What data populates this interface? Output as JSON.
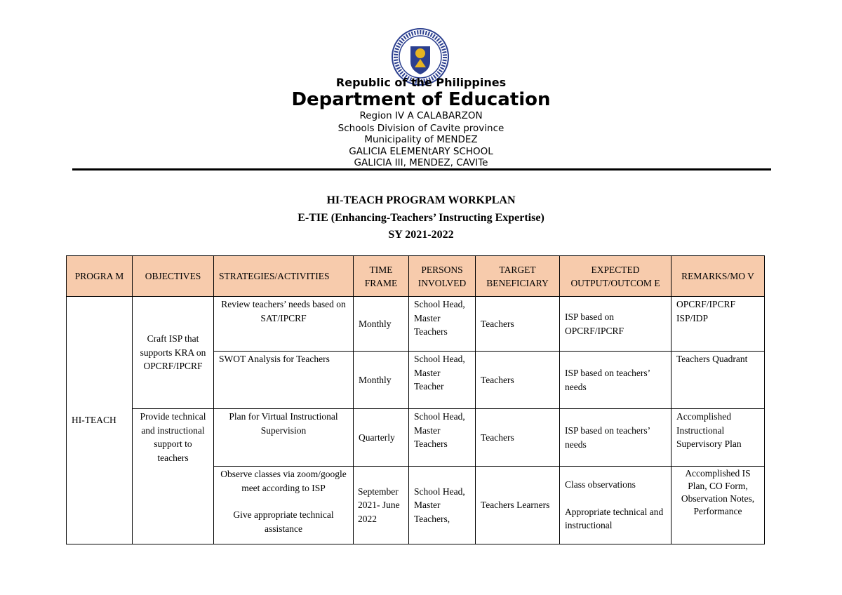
{
  "header": {
    "seal_text": "KAGAWARAN NG EDUKASYON · REPUBLIKA NG PILIPINAS",
    "line1": "Republic of the Philippines",
    "line2": "Department of Education",
    "lines": [
      "Region IV A CALABARZON",
      "Schools Division of Cavite province",
      "Municipality of MENDEZ",
      "GALICIA ELEMENtARY SCHOOL",
      "GALICIA III, MENDEZ, CAVITe"
    ]
  },
  "title": {
    "main": "HI-TEACH PROGRAM WORKPLAN",
    "sub": "E-TIE (Enhancing-Teachers’ Instructing Expertise)",
    "sy": "SY 2021-2022"
  },
  "table": {
    "columns": [
      "PROGRA M",
      "OBJECTIVES",
      "STRATEGIES/ACTIVITIES",
      "TIME FRAME",
      "PERSONS INVOLVED",
      "TARGET BENEFICIARY",
      "EXPECTED OUTPUT/OUTCOM E",
      "REMARKS/MO V"
    ],
    "program": "HI-TEACH",
    "objectives": [
      "Craft ISP that supports KRA on OPCRF/IPCRF",
      "Provide technical and instructional support to teachers"
    ],
    "rows": [
      {
        "strategy": "Review teachers’ needs based on SAT/IPCRF",
        "time": "Monthly",
        "persons": "School Head, Master Teachers",
        "target": "Teachers",
        "output": "ISP based on OPCRF/IPCRF",
        "remarks": "OPCRF/IPCRF ISP/IDP"
      },
      {
        "strategy": "SWOT Analysis for Teachers",
        "time": "Monthly",
        "persons": "School Head, Master Teacher",
        "target": "Teachers",
        "output": "ISP based on teachers’ needs",
        "remarks": "Teachers Quadrant"
      },
      {
        "strategy": "Plan for Virtual Instructional Supervision",
        "time": "Quarterly",
        "persons": "School Head, Master Teachers",
        "target": "Teachers",
        "output": "ISP based on teachers’ needs",
        "remarks": "Accomplished Instructional Supervisory Plan"
      },
      {
        "strategy": "Observe classes via zoom/google meet according to ISP",
        "strategy2": "Give appropriate technical assistance",
        "time": "September 2021- June 2022",
        "persons": "School Head, Master Teachers,",
        "target": "Teachers Learners",
        "output": "Class observations",
        "output2": "Appropriate technical and instructional",
        "remarks": "Accomplished IS Plan, CO Form, Observation Notes, Performance"
      }
    ]
  },
  "colors": {
    "header_fill": "#f7cbac",
    "seal_blue": "#2b3f8f",
    "seal_gold": "#e6b422"
  }
}
